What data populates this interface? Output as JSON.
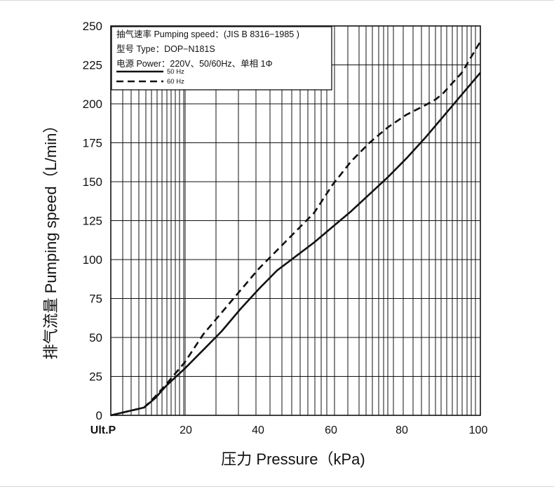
{
  "chart_data": {
    "type": "line",
    "xlabel": "压力 Pressure（kPa)",
    "ylabel": "排气流量 Pumping speed（L/min）",
    "xlim": [
      0,
      100
    ],
    "ylim": [
      0,
      250
    ],
    "x_ticks": [
      {
        "value": 0,
        "label": "Ult.P"
      },
      {
        "value": 20,
        "label": "20"
      },
      {
        "value": 40,
        "label": "40"
      },
      {
        "value": 60,
        "label": "60"
      },
      {
        "value": 80,
        "label": "80"
      },
      {
        "value": 100,
        "label": "100"
      }
    ],
    "y_ticks": [
      0,
      25,
      50,
      75,
      100,
      125,
      150,
      175,
      200,
      225,
      250
    ],
    "legend": {
      "lines": [
        "抽气速率 Pumping speed：(JIS B 8316−1985 )",
        "型号 Type：DOP−N181S",
        "电源 Power：220V、50/60Hz、单相 1Φ"
      ]
    },
    "series": [
      {
        "name": "50 Hz",
        "style": "solid",
        "x": [
          0,
          9,
          12,
          15,
          20,
          25,
          30,
          35,
          40,
          45,
          50,
          55,
          60,
          65,
          70,
          75,
          80,
          85,
          90,
          95,
          100
        ],
        "y": [
          0,
          5,
          11,
          19,
          30,
          42,
          54,
          68,
          81,
          93,
          102,
          111,
          121,
          131,
          142,
          153,
          165,
          178,
          192,
          206,
          220
        ]
      },
      {
        "name": "60 Hz",
        "style": "dashed",
        "x": [
          0,
          9,
          12,
          15,
          20,
          25,
          30,
          35,
          40,
          45,
          50,
          55,
          60,
          65,
          70,
          75,
          80,
          85,
          88,
          90,
          95,
          100
        ],
        "y": [
          0,
          5,
          12,
          20,
          34,
          52,
          66,
          80,
          94,
          106,
          118,
          130,
          148,
          163,
          175,
          185,
          193,
          199,
          203,
          207,
          220,
          240
        ]
      }
    ]
  }
}
